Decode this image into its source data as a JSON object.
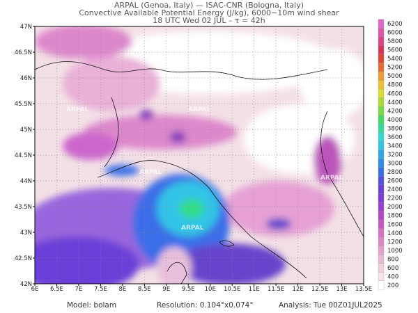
{
  "header": {
    "line1": "ARPAL (Genoa, Italy)  —  ISAC-CNR (Bologna, Italy)",
    "line2": "Convective Available Potential Energy (J/kg), 6000−10m wind shear",
    "line3": "18 UTC Wed 02 JUL  –  τ = 42h"
  },
  "axes": {
    "lon_labels": [
      "6E",
      "6.5E",
      "7E",
      "7.5E",
      "8E",
      "8.5E",
      "9E",
      "9.5E",
      "10E",
      "10.5E",
      "11E",
      "11.5E",
      "12E",
      "12.5E",
      "13E",
      "13.5E"
    ],
    "lat_labels": [
      "42N",
      "42.5N",
      "43N",
      "43.5N",
      "44N",
      "44.5N",
      "45N",
      "45.5N",
      "46N",
      "46.5N",
      "47N"
    ]
  },
  "watermarks": [
    "ARPAL",
    "ARPAL",
    "ARPAL",
    "ARPAL",
    "ARPAL",
    "ARPAL"
  ],
  "colorbar": {
    "levels": [
      200,
      400,
      600,
      800,
      1000,
      1200,
      1400,
      1600,
      1800,
      2000,
      2200,
      2400,
      2600,
      2800,
      3000,
      3200,
      3400,
      3600,
      3800,
      4000,
      4200,
      4400,
      4600,
      4800,
      5000,
      5200,
      5400,
      5600,
      5800,
      6000,
      6200
    ],
    "colors": [
      "#ffffff",
      "#f6e4ea",
      "#f0d0dd",
      "#eab8d2",
      "#e4a0cc",
      "#de88c8",
      "#d870c4",
      "#c858c4",
      "#b048c8",
      "#9840d0",
      "#7f38d8",
      "#6a3fd8",
      "#5050e0",
      "#3a6ee8",
      "#2f8ce8",
      "#30a8e6",
      "#33c4e6",
      "#33d8d0",
      "#33dd99",
      "#44dd66",
      "#77dd44",
      "#aadd33",
      "#dddd33",
      "#eec033",
      "#ee9933",
      "#e86a33",
      "#e04433",
      "#d83355",
      "#dd4488",
      "#e055aa",
      "#e066cc"
    ]
  },
  "footer": {
    "model": "Model: bolam",
    "resolution": "Resolution: 0.104°x0.074°",
    "analysis": "Analysis: Tue 00Z01JUL2025"
  }
}
